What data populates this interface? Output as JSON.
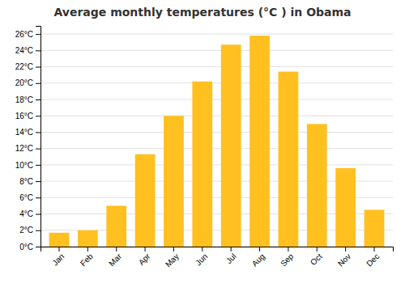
{
  "chart_data": {
    "type": "bar",
    "title": "Average monthly temperatures (°C ) in Obama",
    "categories": [
      "Jan",
      "Feb",
      "Mar",
      "Apr",
      "May",
      "Jun",
      "Jul",
      "Aug",
      "Sep",
      "Oct",
      "Nov",
      "Dec"
    ],
    "values": [
      1.7,
      2.0,
      5.0,
      11.3,
      16.0,
      20.2,
      24.7,
      25.8,
      21.4,
      15.0,
      9.6,
      4.5
    ],
    "color": "#FFC020",
    "ylim": [
      0,
      27
    ],
    "yticks": [
      {
        "value": 0,
        "label": "0°C"
      },
      {
        "value": 2,
        "label": "2°C"
      },
      {
        "value": 4,
        "label": "4°C"
      },
      {
        "value": 6,
        "label": "6°C"
      },
      {
        "value": 8,
        "label": "8°C"
      },
      {
        "value": 10,
        "label": "10°C"
      },
      {
        "value": 12,
        "label": "12°C"
      },
      {
        "value": 14,
        "label": "14°C"
      },
      {
        "value": 16,
        "label": "16°C"
      },
      {
        "value": 18,
        "label": "18°C"
      },
      {
        "value": 20,
        "label": "20°C"
      },
      {
        "value": 22,
        "label": "22°C"
      },
      {
        "value": 24,
        "label": "24°C"
      },
      {
        "value": 26,
        "label": "26°C"
      }
    ],
    "grid": true
  }
}
